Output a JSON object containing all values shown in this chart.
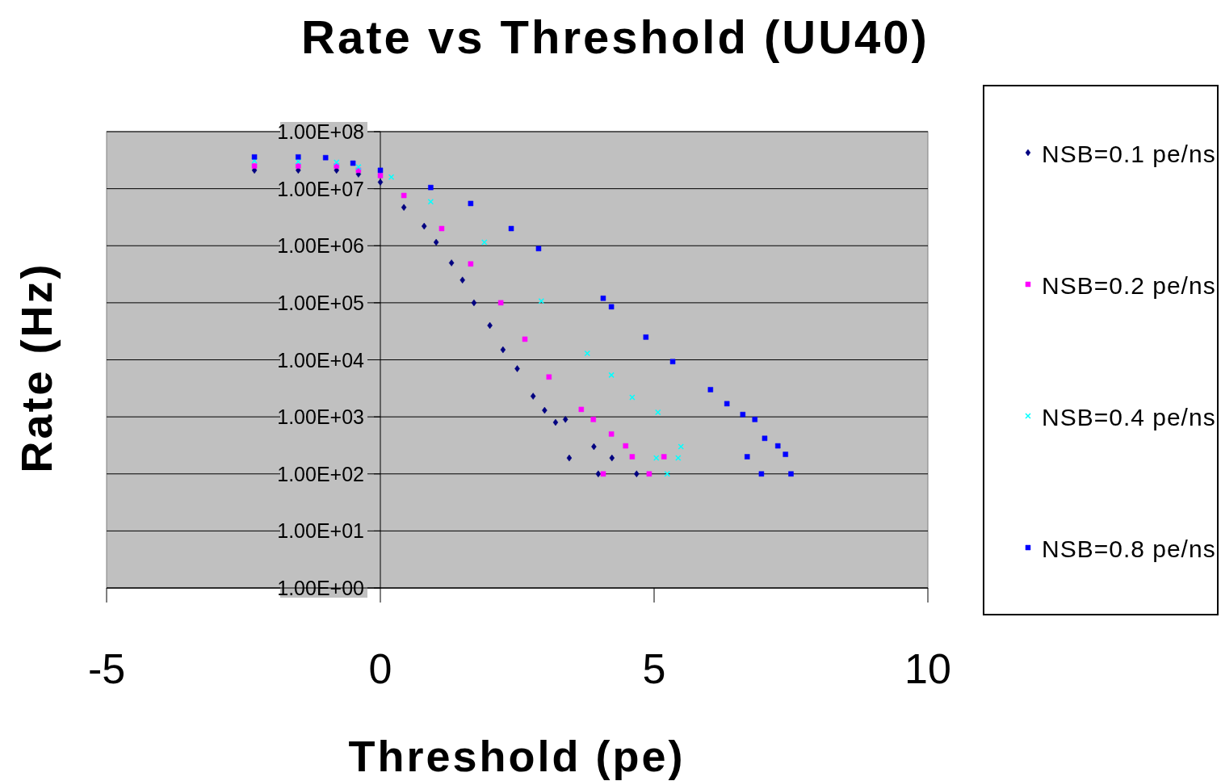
{
  "chart_data": {
    "type": "scatter",
    "title": "Rate vs Threshold (UU40)",
    "xlabel": "Threshold (pe)",
    "ylabel": "Rate (Hz)",
    "log": "y",
    "grid": "y",
    "legend": "right",
    "xlim": [
      -5,
      10
    ],
    "xticks": [
      -5,
      0,
      5,
      10
    ],
    "ylim": [
      1,
      100000000
    ],
    "yticks": [
      {
        "value": 1,
        "label": "1.00E+00"
      },
      {
        "value": 10,
        "label": "1.00E+01"
      },
      {
        "value": 100,
        "label": "1.00E+02"
      },
      {
        "value": 1000,
        "label": "1.00E+03"
      },
      {
        "value": 10000,
        "label": "1.00E+04"
      },
      {
        "value": 100000,
        "label": "1.00E+05"
      },
      {
        "value": 1000000,
        "label": "1.00E+06"
      },
      {
        "value": 10000000,
        "label": "1.00E+07"
      },
      {
        "value": 100000000,
        "label": "1.00E+08"
      }
    ],
    "series": [
      {
        "name": "NSB=0.1 pe/ns",
        "color": "#000080",
        "marker": "diamond",
        "x": [
          -2.3,
          -1.5,
          -0.8,
          -0.4,
          0,
          0.43,
          0.8,
          1.02,
          1.3,
          1.5,
          1.71,
          2.0,
          2.24,
          2.5,
          2.79,
          3.0,
          3.2,
          3.38,
          3.45,
          3.9,
          3.98,
          4.23,
          4.68
        ],
        "values": [
          21000000,
          21000000,
          21000000,
          18000000,
          13000000,
          4700000,
          2200000,
          1150000,
          500000,
          250000,
          100000,
          40000,
          15000,
          7000,
          2300,
          1300,
          800,
          900,
          190,
          300,
          100,
          190,
          100
        ]
      },
      {
        "name": "NSB=0.2 pe/ns",
        "color": "#ff00ff",
        "marker": "square",
        "x": [
          -2.3,
          -1.5,
          -0.8,
          -0.4,
          0,
          0.43,
          1.12,
          1.65,
          2.2,
          2.64,
          3.08,
          3.67,
          3.89,
          4.07,
          4.22,
          4.48,
          4.6,
          4.91,
          5.18
        ],
        "values": [
          25000000,
          25000000,
          25000000,
          21000000,
          17000000,
          7600000,
          2000000,
          480000,
          100000,
          23000,
          5000,
          1350,
          900,
          100,
          500,
          310,
          200,
          100,
          200
        ]
      },
      {
        "name": "NSB=0.4 pe/ns",
        "color": "#00ffff",
        "marker": "cross",
        "x": [
          -2.3,
          -1.5,
          -0.8,
          -0.4,
          0.2,
          0.92,
          1.9,
          2.94,
          3.78,
          4.22,
          4.6,
          5.04,
          5.07,
          5.24,
          5.44,
          5.49
        ],
        "values": [
          31000000,
          30000000,
          29000000,
          24000000,
          16000000,
          5900000,
          1150000,
          107000,
          13000,
          5400,
          2200,
          190,
          1200,
          100,
          190,
          300
        ]
      },
      {
        "name": "NSB=0.8 pe/ns",
        "color": "#0000ff",
        "marker": "square",
        "x": [
          -2.3,
          -1.5,
          -1.0,
          -0.5,
          0,
          0.92,
          1.65,
          2.39,
          2.89,
          4.07,
          4.22,
          4.85,
          5.34,
          6.03,
          6.33,
          6.62,
          6.7,
          6.84,
          6.96,
          7.02,
          7.26,
          7.4,
          7.5
        ],
        "values": [
          36000000,
          36000000,
          35000000,
          28000000,
          21000000,
          10500000,
          5500000,
          2000000,
          890000,
          120000,
          85000,
          25000,
          9300,
          3000,
          1700,
          1100,
          200,
          900,
          100,
          420,
          310,
          220,
          100
        ]
      }
    ]
  }
}
